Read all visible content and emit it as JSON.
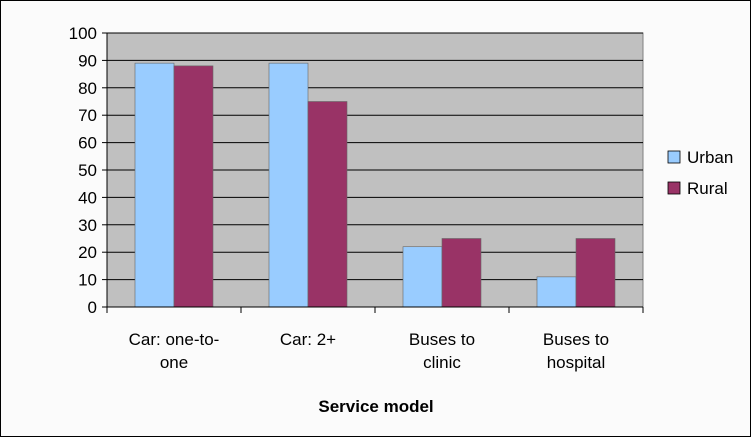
{
  "chart_data": {
    "type": "bar",
    "categories": [
      [
        "Car: one-to-",
        "one"
      ],
      [
        "Car: 2+"
      ],
      [
        "Buses to",
        "clinic"
      ],
      [
        "Buses to",
        "hospital"
      ]
    ],
    "series": [
      {
        "name": "Urban",
        "values": [
          89,
          89,
          22,
          11
        ],
        "color": "#99ccff"
      },
      {
        "name": "Rural",
        "values": [
          88,
          75,
          25,
          25
        ],
        "color": "#993366"
      }
    ],
    "title": "",
    "xlabel": "Service model",
    "ylabel": "",
    "ylim": [
      0,
      100
    ],
    "yticks": [
      0,
      10,
      20,
      30,
      40,
      50,
      60,
      70,
      80,
      90,
      100
    ],
    "grid": true,
    "plot_background": "#c0c0c0",
    "legend_position": "right"
  }
}
